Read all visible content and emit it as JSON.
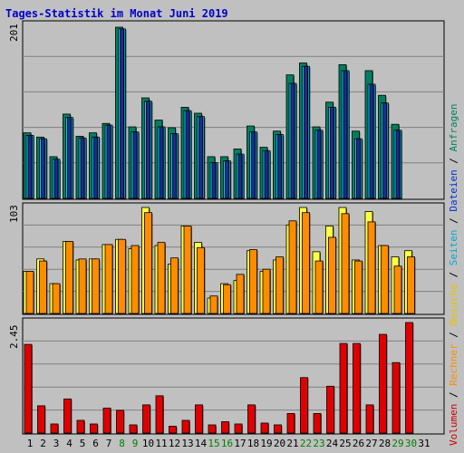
{
  "title": "Tages-Statistik im Monat Juni 2019",
  "colors": {
    "background": "#c0c0c0",
    "title": "#0000cc",
    "anfragen": "#00805f",
    "dateien": "#00ccff",
    "seiten": "#ffff44",
    "besuche": "#ff8c00",
    "rechner": "#ff8c00",
    "volumen": "#e00000",
    "weekend_day": "#008000",
    "weekday": "#000000",
    "grid": "#808080"
  },
  "right_label": {
    "parts": [
      {
        "text": "Volumen",
        "color": "#cc0000"
      },
      {
        "text": " / ",
        "color": "#000000"
      },
      {
        "text": "Rechner",
        "color": "#ff8c00"
      },
      {
        "text": " / ",
        "color": "#000000"
      },
      {
        "text": "Besuche",
        "color": "#e6c200"
      },
      {
        "text": " / ",
        "color": "#000000"
      },
      {
        "text": "Seiten",
        "color": "#00aacc"
      },
      {
        "text": " / ",
        "color": "#000000"
      },
      {
        "text": "Dateien",
        "color": "#0033cc"
      },
      {
        "text": " / ",
        "color": "#000000"
      },
      {
        "text": "Anfragen",
        "color": "#00805f"
      }
    ]
  },
  "chart_data": [
    {
      "type": "bar",
      "name": "top",
      "ymax_label": "201",
      "ylim": [
        0,
        201
      ],
      "categories": [
        "1",
        "2",
        "3",
        "4",
        "5",
        "6",
        "7",
        "8",
        "9",
        "10",
        "11",
        "12",
        "13",
        "14",
        "15",
        "16",
        "17",
        "18",
        "19",
        "20",
        "21",
        "22",
        "23",
        "24",
        "25",
        "26",
        "27",
        "28",
        "29",
        "30",
        "31"
      ],
      "series": [
        {
          "name": "Anfragen",
          "values": [
            77,
            72,
            49,
            99,
            73,
            77,
            88,
            201,
            84,
            118,
            92,
            83,
            107,
            100,
            49,
            49,
            58,
            85,
            60,
            79,
            145,
            159,
            84,
            113,
            157,
            79,
            150,
            121,
            87,
            null,
            null
          ]
        },
        {
          "name": "Dateien",
          "values": [
            74,
            70,
            46,
            95,
            71,
            72,
            86,
            199,
            78,
            114,
            84,
            76,
            103,
            96,
            42,
            44,
            52,
            78,
            56,
            75,
            135,
            155,
            80,
            107,
            150,
            70,
            134,
            112,
            80,
            null,
            null
          ]
        },
        {
          "name": "Seiten",
          "values": [
            74,
            70,
            46,
            95,
            71,
            72,
            86,
            199,
            78,
            114,
            84,
            76,
            103,
            96,
            42,
            44,
            52,
            78,
            56,
            75,
            135,
            155,
            80,
            107,
            150,
            70,
            134,
            112,
            80,
            null,
            null
          ]
        }
      ]
    },
    {
      "type": "bar",
      "name": "middle",
      "ymax_label": "103",
      "ylim": [
        0,
        103
      ],
      "categories": [
        "1",
        "2",
        "3",
        "4",
        "5",
        "6",
        "7",
        "8",
        "9",
        "10",
        "11",
        "12",
        "13",
        "14",
        "15",
        "16",
        "17",
        "18",
        "19",
        "20",
        "21",
        "22",
        "23",
        "24",
        "25",
        "26",
        "27",
        "28",
        "29",
        "30",
        "31"
      ],
      "series": [
        {
          "name": "Besuche",
          "values": [
            41,
            53,
            29,
            70,
            52,
            53,
            67,
            72,
            63,
            103,
            66,
            48,
            85,
            69,
            15,
            29,
            32,
            61,
            41,
            52,
            86,
            103,
            60,
            85,
            103,
            52,
            99,
            66,
            55,
            61,
            null
          ]
        },
        {
          "name": "Rechner",
          "values": [
            41,
            51,
            29,
            70,
            53,
            53,
            67,
            72,
            66,
            98,
            69,
            54,
            85,
            64,
            17,
            28,
            38,
            62,
            43,
            55,
            90,
            98,
            51,
            74,
            97,
            51,
            89,
            66,
            46,
            55,
            null
          ]
        }
      ]
    },
    {
      "type": "bar",
      "name": "bottom",
      "ymax_label": "2.45",
      "ylim": [
        0,
        2.45
      ],
      "categories": [
        "1",
        "2",
        "3",
        "4",
        "5",
        "6",
        "7",
        "8",
        "9",
        "10",
        "11",
        "12",
        "13",
        "14",
        "15",
        "16",
        "17",
        "18",
        "19",
        "20",
        "21",
        "22",
        "23",
        "24",
        "25",
        "26",
        "27",
        "28",
        "29",
        "30",
        "31"
      ],
      "series": [
        {
          "name": "Volumen",
          "values": [
            1.95,
            0.6,
            0.2,
            0.75,
            0.28,
            0.2,
            0.55,
            0.5,
            0.18,
            0.62,
            0.82,
            0.15,
            0.28,
            0.62,
            0.18,
            0.25,
            0.2,
            0.62,
            0.22,
            0.18,
            0.43,
            1.22,
            0.43,
            1.03,
            1.97,
            1.97,
            0.62,
            2.17,
            1.55,
            2.43,
            null
          ]
        }
      ]
    }
  ],
  "days": [
    {
      "label": "1",
      "weekend": false
    },
    {
      "label": "2",
      "weekend": false
    },
    {
      "label": "3",
      "weekend": false
    },
    {
      "label": "4",
      "weekend": false
    },
    {
      "label": "5",
      "weekend": false
    },
    {
      "label": "6",
      "weekend": false
    },
    {
      "label": "7",
      "weekend": false
    },
    {
      "label": "8",
      "weekend": true
    },
    {
      "label": "9",
      "weekend": true
    },
    {
      "label": "10",
      "weekend": false
    },
    {
      "label": "11",
      "weekend": false
    },
    {
      "label": "12",
      "weekend": false
    },
    {
      "label": "13",
      "weekend": false
    },
    {
      "label": "14",
      "weekend": false
    },
    {
      "label": "15",
      "weekend": true
    },
    {
      "label": "16",
      "weekend": true
    },
    {
      "label": "17",
      "weekend": false
    },
    {
      "label": "18",
      "weekend": false
    },
    {
      "label": "19",
      "weekend": false
    },
    {
      "label": "20",
      "weekend": false
    },
    {
      "label": "21",
      "weekend": false
    },
    {
      "label": "22",
      "weekend": true
    },
    {
      "label": "23",
      "weekend": true
    },
    {
      "label": "24",
      "weekend": false
    },
    {
      "label": "25",
      "weekend": false
    },
    {
      "label": "26",
      "weekend": false
    },
    {
      "label": "27",
      "weekend": false
    },
    {
      "label": "28",
      "weekend": false
    },
    {
      "label": "29",
      "weekend": true
    },
    {
      "label": "30",
      "weekend": true
    },
    {
      "label": "31",
      "weekend": false
    }
  ]
}
